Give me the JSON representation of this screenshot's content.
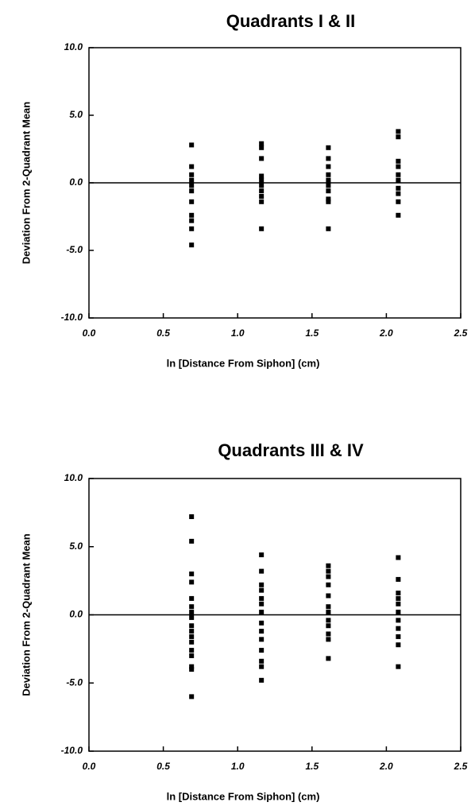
{
  "chart_data": [
    {
      "type": "scatter",
      "title": "Quadrants I & II",
      "xlabel": "ln [Distance From Siphon]  (cm)",
      "ylabel": "Deviation From 2-Quadrant Mean",
      "color": "#000000",
      "reference_line": 0,
      "xlim": [
        0,
        2.5
      ],
      "ylim": [
        -10,
        10
      ],
      "xticks": [
        {
          "value": 0,
          "label": "0.0"
        },
        {
          "value": 0.5,
          "label": "0.5"
        },
        {
          "value": 1,
          "label": "1.0"
        },
        {
          "value": 1.5,
          "label": "1.5"
        },
        {
          "value": 2,
          "label": "2.0"
        },
        {
          "value": 2.5,
          "label": "2.5"
        }
      ],
      "yticks": [
        {
          "value": 10,
          "label": "10.0"
        },
        {
          "value": 5,
          "label": "5.0"
        },
        {
          "value": 0,
          "label": "0.0"
        },
        {
          "value": -5,
          "label": "-5.0"
        },
        {
          "value": -10,
          "label": "-10.0"
        }
      ],
      "x": [
        0.69,
        0.69,
        0.69,
        0.69,
        0.69,
        0.69,
        0.69,
        0.69,
        0.69,
        0.69,
        0.69,
        1.16,
        1.16,
        1.16,
        1.16,
        1.16,
        1.16,
        1.16,
        1.16,
        1.16,
        1.16,
        1.61,
        1.61,
        1.61,
        1.61,
        1.61,
        1.61,
        1.61,
        1.61,
        1.61,
        1.61,
        2.08,
        2.08,
        2.08,
        2.08,
        2.08,
        2.08,
        2.08,
        2.08,
        2.08,
        2.08
      ],
      "values": [
        2.8,
        1.2,
        0.6,
        0.2,
        -0.2,
        -0.6,
        -1.4,
        -2.4,
        -2.8,
        -3.4,
        -4.6,
        2.9,
        2.6,
        1.8,
        0.5,
        0.2,
        -0.2,
        -0.6,
        -1.0,
        -1.4,
        -3.4,
        2.6,
        1.8,
        1.2,
        0.6,
        0.2,
        -0.2,
        -0.6,
        -1.2,
        -1.4,
        -3.4,
        3.8,
        3.4,
        1.6,
        1.2,
        0.6,
        0.2,
        -0.4,
        -0.8,
        -1.4,
        -2.4
      ]
    },
    {
      "type": "scatter",
      "title": "Quadrants III & IV",
      "xlabel": "ln [Distance From Siphon]  (cm)",
      "ylabel": "Deviation From 2-Quadrant Mean",
      "color": "#000000",
      "reference_line": 0,
      "xlim": [
        0,
        2.5
      ],
      "ylim": [
        -10,
        10
      ],
      "xticks": [
        {
          "value": 0,
          "label": "0.0"
        },
        {
          "value": 0.5,
          "label": "0.5"
        },
        {
          "value": 1,
          "label": "1.0"
        },
        {
          "value": 1.5,
          "label": "1.5"
        },
        {
          "value": 2,
          "label": "2.0"
        },
        {
          "value": 2.5,
          "label": "2.5"
        }
      ],
      "yticks": [
        {
          "value": 10,
          "label": "10.0"
        },
        {
          "value": 5,
          "label": "5.0"
        },
        {
          "value": 0,
          "label": "0.0"
        },
        {
          "value": -5,
          "label": "-5.0"
        },
        {
          "value": -10,
          "label": "-10.0"
        }
      ],
      "x": [
        0.69,
        0.69,
        0.69,
        0.69,
        0.69,
        0.69,
        0.69,
        0.69,
        0.69,
        0.69,
        0.69,
        0.69,
        0.69,
        0.69,
        0.69,
        0.69,
        0.69,
        1.16,
        1.16,
        1.16,
        1.16,
        1.16,
        1.16,
        1.16,
        1.16,
        1.16,
        1.16,
        1.16,
        1.16,
        1.16,
        1.16,
        1.61,
        1.61,
        1.61,
        1.61,
        1.61,
        1.61,
        1.61,
        1.61,
        1.61,
        1.61,
        1.61,
        1.61,
        2.08,
        2.08,
        2.08,
        2.08,
        2.08,
        2.08,
        2.08,
        2.08,
        2.08,
        2.08,
        2.08
      ],
      "values": [
        7.2,
        5.4,
        3.0,
        2.4,
        1.2,
        0.6,
        0.2,
        -0.2,
        -0.8,
        -1.2,
        -1.6,
        -2.0,
        -2.6,
        -3.0,
        -3.8,
        -4.0,
        -6.0,
        4.4,
        3.2,
        2.2,
        1.8,
        1.2,
        0.8,
        0.2,
        -0.6,
        -1.2,
        -1.8,
        -2.6,
        -3.4,
        -3.8,
        -4.8,
        3.6,
        3.2,
        2.8,
        2.2,
        1.4,
        0.6,
        0.2,
        -0.4,
        -0.8,
        -1.4,
        -1.8,
        -3.2,
        4.2,
        2.6,
        1.6,
        1.2,
        0.8,
        0.2,
        -0.4,
        -1.0,
        -1.6,
        -2.2,
        -3.8
      ]
    }
  ]
}
